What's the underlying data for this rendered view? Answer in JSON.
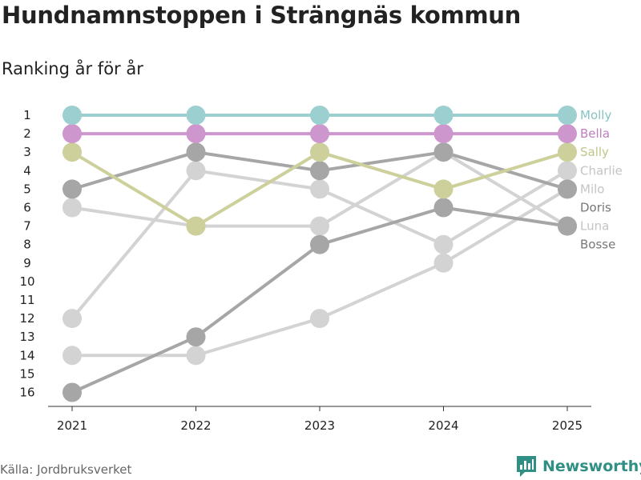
{
  "header": {
    "title": "Hundnamnstoppen i Strängnäs kommun",
    "subtitle": "Ranking år för år"
  },
  "footer": {
    "source": "Källa: Jordbruksverket",
    "brand": "Newsworthy",
    "brand_icon": "bar-chart-logo-icon",
    "brand_color": "#2f8f84"
  },
  "chart_data": {
    "type": "line",
    "title": "Hundnamnstoppen i Strängnäs kommun",
    "subtitle": "Ranking år för år",
    "xlabel": "",
    "ylabel": "",
    "x": [
      "2021",
      "2022",
      "2023",
      "2024",
      "2025"
    ],
    "y_ticks": [
      "1",
      "2",
      "3",
      "4",
      "5",
      "6",
      "7",
      "8",
      "9",
      "10",
      "11",
      "12",
      "13",
      "14",
      "15",
      "16"
    ],
    "ylim": [
      1,
      16
    ],
    "y_inverted": true,
    "grid": false,
    "series": [
      {
        "name": "Charlie",
        "values": [
          12,
          4,
          5,
          8,
          4
        ],
        "color": "#d3d3d3",
        "label_color": "#c4c4c4"
      },
      {
        "name": "Milo",
        "values": [
          14,
          14,
          12,
          9,
          5
        ],
        "color": "#d3d3d3",
        "label_color": "#c4c4c4"
      },
      {
        "name": "Luna",
        "values": [
          6,
          7,
          7,
          3,
          7
        ],
        "color": "#d3d3d3",
        "label_color": "#c4c4c4"
      },
      {
        "name": "Doris",
        "values": [
          5,
          3,
          4,
          3,
          5
        ],
        "color": "#a6a6a6",
        "label_color": "#777777"
      },
      {
        "name": "Bosse",
        "values": [
          16,
          13,
          8,
          6,
          7
        ],
        "color": "#a6a6a6",
        "label_color": "#777777"
      },
      {
        "name": "Sally",
        "values": [
          3,
          7,
          3,
          5,
          3
        ],
        "color": "#cdd09a",
        "label_color": "#c2c58a"
      },
      {
        "name": "Bella",
        "values": [
          2,
          2,
          2,
          2,
          2
        ],
        "color": "#cd97cd",
        "label_color": "#c07ec0"
      },
      {
        "name": "Molly",
        "values": [
          1,
          1,
          1,
          1,
          1
        ],
        "color": "#9ccfcf",
        "label_color": "#86c4c4"
      }
    ]
  }
}
